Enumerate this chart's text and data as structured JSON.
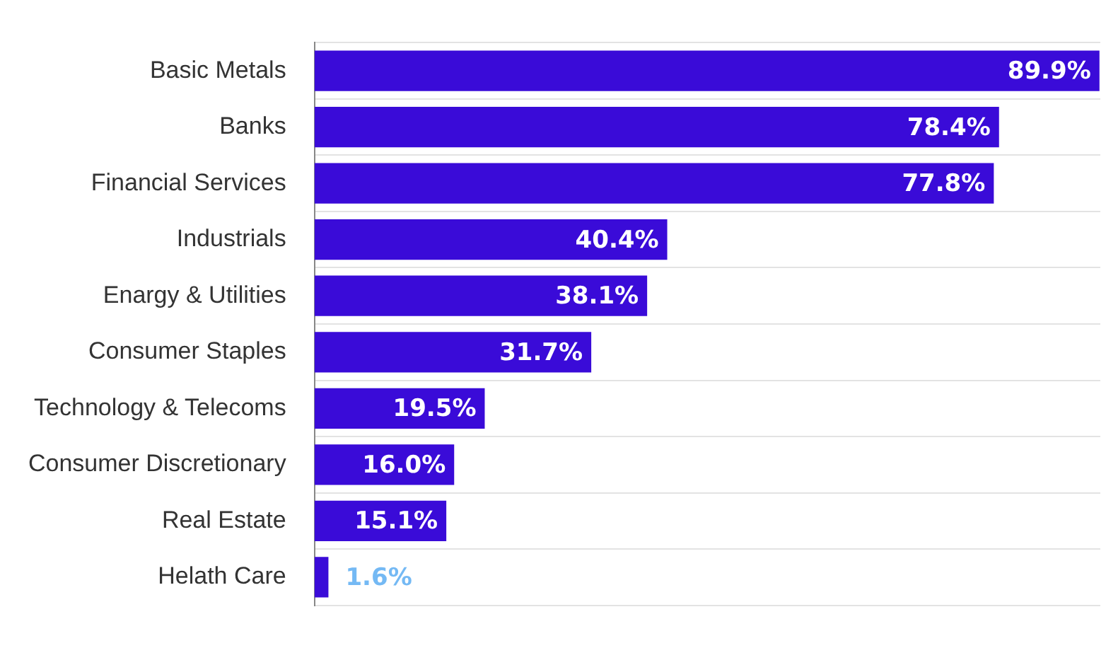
{
  "chart_data": {
    "type": "bar",
    "orientation": "horizontal",
    "categories": [
      "Basic Metals",
      "Banks",
      "Financial Services",
      "Industrials",
      "Enargy & Utilities",
      "Consumer Staples",
      "Technology & Telecoms",
      "Consumer Discretionary",
      "Real Estate",
      "Helath Care"
    ],
    "values": [
      89.9,
      78.4,
      77.8,
      40.4,
      38.1,
      31.7,
      19.5,
      16.0,
      15.1,
      1.6
    ],
    "value_labels": [
      "89.9%",
      "78.4%",
      "77.8%",
      "40.4%",
      "38.1%",
      "31.7%",
      "19.5%",
      "16.0%",
      "15.1%",
      "1.6%"
    ],
    "color": "#3a0bd8",
    "xlim": [
      0,
      90
    ],
    "tick_labels": "y",
    "grid": "y"
  }
}
